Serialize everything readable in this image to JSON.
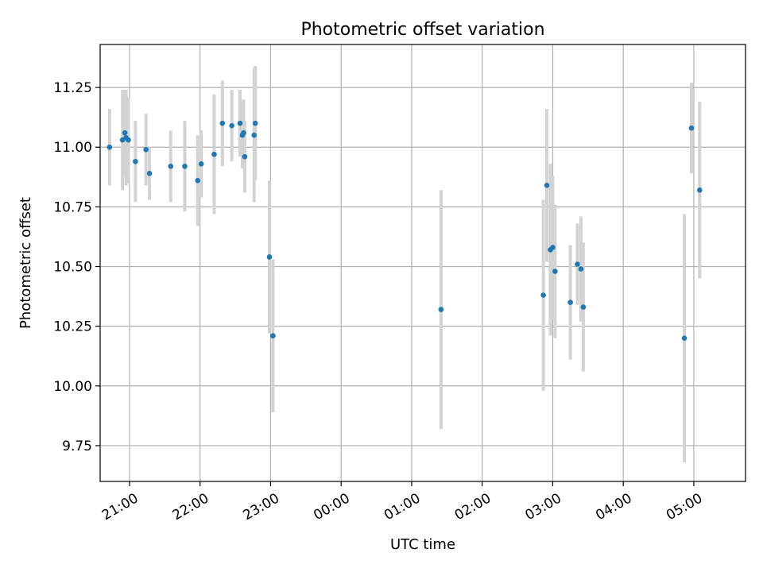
{
  "chart_data": {
    "type": "scatter",
    "title": "Photometric offset variation",
    "xlabel": "UTC time",
    "ylabel": "Photometric offset",
    "x_ticks": [
      "21:00",
      "22:00",
      "23:00",
      "00:00",
      "01:00",
      "02:00",
      "03:00",
      "04:00",
      "05:00"
    ],
    "x_tick_hours": [
      21,
      22,
      23,
      24,
      25,
      26,
      27,
      28,
      29
    ],
    "y_ticks": [
      9.75,
      10.0,
      10.25,
      10.5,
      10.75,
      11.0,
      11.25
    ],
    "y_tick_labels": [
      "9.75",
      "10.00",
      "10.25",
      "10.50",
      "10.75",
      "11.00",
      "11.25"
    ],
    "xlim": [
      "20:35",
      "05:44"
    ],
    "ylim": [
      9.6,
      11.43
    ],
    "grid": true,
    "colors": {
      "marker": "#1f77b4",
      "errorbar": "#d3d3d3",
      "grid": "#b0b0b0"
    },
    "points": [
      {
        "t": "20:43",
        "y": 11.0,
        "err": 0.16
      },
      {
        "t": "20:54",
        "y": 11.03,
        "err": 0.21
      },
      {
        "t": "20:56",
        "y": 11.06,
        "err": 0.18
      },
      {
        "t": "20:57",
        "y": 11.04,
        "err": 0.2
      },
      {
        "t": "20:59",
        "y": 11.03,
        "err": 0.18
      },
      {
        "t": "21:05",
        "y": 10.94,
        "err": 0.17
      },
      {
        "t": "21:14",
        "y": 10.99,
        "err": 0.15
      },
      {
        "t": "21:17",
        "y": 10.89,
        "err": 0.11
      },
      {
        "t": "21:35",
        "y": 10.92,
        "err": 0.15
      },
      {
        "t": "21:47",
        "y": 10.92,
        "err": 0.19
      },
      {
        "t": "21:58",
        "y": 10.86,
        "err": 0.19
      },
      {
        "t": "22:01",
        "y": 10.93,
        "err": 0.14
      },
      {
        "t": "22:12",
        "y": 10.97,
        "err": 0.25
      },
      {
        "t": "22:19",
        "y": 11.1,
        "err": 0.18
      },
      {
        "t": "22:27",
        "y": 11.09,
        "err": 0.15
      },
      {
        "t": "22:34",
        "y": 11.1,
        "err": 0.14
      },
      {
        "t": "22:36",
        "y": 11.05,
        "err": 0.14
      },
      {
        "t": "22:37",
        "y": 11.06,
        "err": 0.14
      },
      {
        "t": "22:38",
        "y": 10.96,
        "err": 0.15
      },
      {
        "t": "22:46",
        "y": 11.05,
        "err": 0.28
      },
      {
        "t": "22:47",
        "y": 11.1,
        "err": 0.24
      },
      {
        "t": "22:59",
        "y": 10.54,
        "err": 0.32
      },
      {
        "t": "23:02",
        "y": 10.21,
        "err": 0.32
      },
      {
        "t": "01:25",
        "y": 10.32,
        "err": 0.5
      },
      {
        "t": "02:52",
        "y": 10.38,
        "err": 0.4
      },
      {
        "t": "02:55",
        "y": 10.84,
        "err": 0.32
      },
      {
        "t": "02:58",
        "y": 10.57,
        "err": 0.36
      },
      {
        "t": "03:00",
        "y": 10.58,
        "err": 0.3
      },
      {
        "t": "03:02",
        "y": 10.48,
        "err": 0.28
      },
      {
        "t": "03:15",
        "y": 10.35,
        "err": 0.24
      },
      {
        "t": "03:21",
        "y": 10.51,
        "err": 0.17
      },
      {
        "t": "03:24",
        "y": 10.49,
        "err": 0.22
      },
      {
        "t": "03:26",
        "y": 10.33,
        "err": 0.27
      },
      {
        "t": "04:52",
        "y": 10.2,
        "err": 0.52
      },
      {
        "t": "04:58",
        "y": 11.08,
        "err": 0.19
      },
      {
        "t": "05:05",
        "y": 10.82,
        "err": 0.37
      }
    ]
  }
}
